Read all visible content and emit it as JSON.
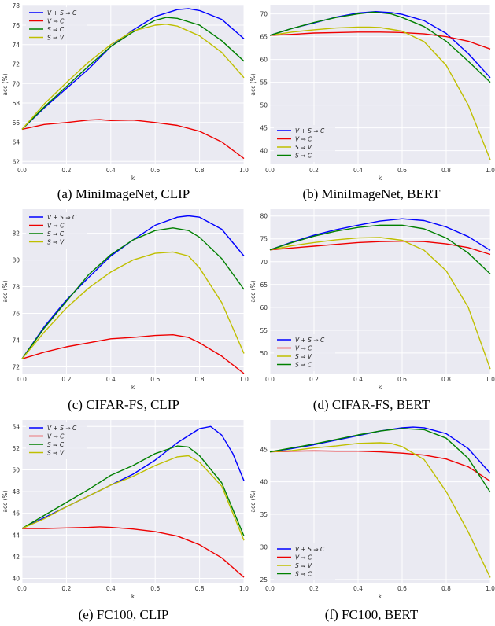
{
  "chart_data": [
    {
      "type": "line",
      "caption": "(a) MiniImageNet, CLIP",
      "xlabel": "k",
      "ylabel": "acc (%)",
      "xlim": [
        0,
        1
      ],
      "ylim": [
        61.7,
        78.1
      ],
      "xticks": [
        "0.0",
        "0.2",
        "0.4",
        "0.6",
        "0.8",
        "1.0"
      ],
      "yticks": [
        "62",
        "64",
        "66",
        "68",
        "70",
        "72",
        "74",
        "76",
        "78"
      ],
      "ytick_vals": [
        62,
        64,
        66,
        68,
        70,
        72,
        74,
        76,
        78
      ],
      "legend": "top-left",
      "grid": true,
      "series": [
        {
          "name": "V + S ⇒ C",
          "color": "#0000ff",
          "x": [
            0,
            0.1,
            0.2,
            0.3,
            0.4,
            0.5,
            0.6,
            0.7,
            0.75,
            0.8,
            0.9,
            1.0
          ],
          "y": [
            65.3,
            67.5,
            69.5,
            71.5,
            73.8,
            75.5,
            76.9,
            77.6,
            77.7,
            77.5,
            76.6,
            74.6
          ]
        },
        {
          "name": "V ⇒ C",
          "color": "#ee0000",
          "x": [
            0,
            0.1,
            0.2,
            0.3,
            0.35,
            0.4,
            0.5,
            0.6,
            0.7,
            0.8,
            0.9,
            1.0
          ],
          "y": [
            65.3,
            65.8,
            66.0,
            66.25,
            66.3,
            66.2,
            66.25,
            66.0,
            65.7,
            65.1,
            64.0,
            62.3
          ]
        },
        {
          "name": "S ⇒ C",
          "color": "#008000",
          "x": [
            0,
            0.1,
            0.2,
            0.3,
            0.4,
            0.5,
            0.6,
            0.65,
            0.7,
            0.8,
            0.9,
            1.0
          ],
          "y": [
            65.3,
            67.6,
            69.7,
            71.8,
            73.8,
            75.3,
            76.5,
            76.8,
            76.7,
            76.0,
            74.4,
            72.3
          ]
        },
        {
          "name": "S ⇒ V",
          "color": "#bfbf00",
          "x": [
            0,
            0.1,
            0.2,
            0.3,
            0.4,
            0.5,
            0.6,
            0.65,
            0.7,
            0.8,
            0.9,
            1.0
          ],
          "y": [
            65.3,
            67.9,
            70.1,
            72.2,
            74.0,
            75.4,
            76.0,
            76.1,
            75.9,
            74.9,
            73.2,
            70.6
          ]
        }
      ]
    },
    {
      "type": "line",
      "caption": "(b) MiniImageNet, BERT",
      "xlabel": "k",
      "ylabel": "acc (%)",
      "xlim": [
        0,
        1
      ],
      "ylim": [
        37,
        72
      ],
      "xticks": [
        "0.0",
        "0.2",
        "0.4",
        "0.6",
        "0.8",
        "1.0"
      ],
      "yticks": [
        "40",
        "45",
        "50",
        "55",
        "60",
        "65",
        "70"
      ],
      "ytick_vals": [
        40,
        45,
        50,
        55,
        60,
        65,
        70
      ],
      "legend": "bottom-left",
      "grid": true,
      "series": [
        {
          "name": "V + S ⇒ C",
          "color": "#0000ff",
          "x": [
            0,
            0.1,
            0.2,
            0.3,
            0.4,
            0.48,
            0.55,
            0.6,
            0.7,
            0.8,
            0.9,
            1.0
          ],
          "y": [
            65.3,
            66.8,
            68.0,
            69.3,
            70.2,
            70.5,
            70.3,
            69.9,
            68.5,
            65.7,
            61.3,
            56.0
          ]
        },
        {
          "name": "V ⇒ C",
          "color": "#ee0000",
          "x": [
            0,
            0.1,
            0.2,
            0.3,
            0.4,
            0.5,
            0.6,
            0.7,
            0.8,
            0.9,
            1.0
          ],
          "y": [
            65.3,
            65.5,
            65.8,
            65.9,
            66.0,
            66.0,
            65.9,
            65.6,
            65.0,
            64.0,
            62.3
          ]
        },
        {
          "name": "S ⇒ V",
          "color": "#bfbf00",
          "x": [
            0,
            0.1,
            0.2,
            0.3,
            0.4,
            0.45,
            0.5,
            0.6,
            0.7,
            0.8,
            0.9,
            1.0
          ],
          "y": [
            65.3,
            66.0,
            66.5,
            66.9,
            67.1,
            67.1,
            67.0,
            66.2,
            63.9,
            58.7,
            50.0,
            38.0
          ]
        },
        {
          "name": "S ⇒ C",
          "color": "#008000",
          "x": [
            0,
            0.1,
            0.2,
            0.3,
            0.4,
            0.47,
            0.55,
            0.6,
            0.7,
            0.8,
            0.9,
            1.0
          ],
          "y": [
            65.3,
            66.8,
            68.1,
            69.2,
            70.0,
            70.4,
            70.0,
            69.2,
            67.2,
            64.0,
            59.6,
            55.0
          ]
        }
      ]
    },
    {
      "type": "line",
      "caption": "(c) CIFAR-FS, CLIP",
      "xlabel": "k",
      "ylabel": "acc (%)",
      "xlim": [
        0,
        1
      ],
      "ylim": [
        71.5,
        83.8
      ],
      "xticks": [
        "0.0",
        "0.2",
        "0.4",
        "0.6",
        "0.8",
        "1.0"
      ],
      "yticks": [
        "72",
        "74",
        "76",
        "78",
        "80",
        "82"
      ],
      "ytick_vals": [
        72,
        74,
        76,
        78,
        80,
        82
      ],
      "legend": "top-left",
      "grid": true,
      "series": [
        {
          "name": "V + S ⇒ C",
          "color": "#0000ff",
          "x": [
            0,
            0.1,
            0.2,
            0.3,
            0.4,
            0.5,
            0.6,
            0.7,
            0.75,
            0.8,
            0.9,
            1.0
          ],
          "y": [
            72.6,
            75.0,
            77.0,
            78.7,
            80.3,
            81.5,
            82.6,
            83.2,
            83.3,
            83.2,
            82.3,
            80.3
          ]
        },
        {
          "name": "V ⇒ C",
          "color": "#ee0000",
          "x": [
            0,
            0.1,
            0.2,
            0.3,
            0.4,
            0.5,
            0.6,
            0.68,
            0.75,
            0.8,
            0.9,
            1.0
          ],
          "y": [
            72.6,
            73.1,
            73.5,
            73.8,
            74.1,
            74.2,
            74.35,
            74.4,
            74.2,
            73.8,
            72.8,
            71.5
          ]
        },
        {
          "name": "S ⇒ C",
          "color": "#008000",
          "x": [
            0,
            0.1,
            0.2,
            0.3,
            0.4,
            0.5,
            0.6,
            0.68,
            0.75,
            0.8,
            0.9,
            1.0
          ],
          "y": [
            72.6,
            74.9,
            76.9,
            78.9,
            80.4,
            81.5,
            82.2,
            82.4,
            82.2,
            81.7,
            80.1,
            77.8
          ]
        },
        {
          "name": "S ⇒ V",
          "color": "#bfbf00",
          "x": [
            0,
            0.1,
            0.2,
            0.3,
            0.4,
            0.5,
            0.6,
            0.68,
            0.75,
            0.8,
            0.9,
            1.0
          ],
          "y": [
            72.6,
            74.6,
            76.4,
            77.9,
            79.1,
            80.0,
            80.5,
            80.6,
            80.3,
            79.4,
            76.8,
            73.0
          ]
        }
      ]
    },
    {
      "type": "line",
      "caption": "(d) CIFAR-FS, BERT",
      "xlabel": "k",
      "ylabel": "acc (%)",
      "xlim": [
        0,
        1
      ],
      "ylim": [
        45.5,
        81.5
      ],
      "xticks": [
        "0.0",
        "0.2",
        "0.4",
        "0.6",
        "0.8",
        "1.0"
      ],
      "yticks": [
        "50",
        "55",
        "60",
        "65",
        "70",
        "75",
        "80"
      ],
      "ytick_vals": [
        50,
        55,
        60,
        65,
        70,
        75,
        80
      ],
      "legend": "bottom-left",
      "grid": true,
      "series": [
        {
          "name": "V + S ⇒ C",
          "color": "#0000ff",
          "x": [
            0,
            0.1,
            0.2,
            0.3,
            0.4,
            0.5,
            0.6,
            0.7,
            0.8,
            0.9,
            1.0
          ],
          "y": [
            72.6,
            74.3,
            75.8,
            77.0,
            78.0,
            78.9,
            79.4,
            79.0,
            77.6,
            75.5,
            72.5
          ]
        },
        {
          "name": "V ⇒ C",
          "color": "#ee0000",
          "x": [
            0,
            0.1,
            0.2,
            0.3,
            0.4,
            0.5,
            0.6,
            0.7,
            0.8,
            0.9,
            1.0
          ],
          "y": [
            72.6,
            73.0,
            73.4,
            73.8,
            74.2,
            74.4,
            74.5,
            74.4,
            73.9,
            73.1,
            71.6
          ]
        },
        {
          "name": "S ⇒ V",
          "color": "#bfbf00",
          "x": [
            0,
            0.1,
            0.2,
            0.3,
            0.4,
            0.5,
            0.6,
            0.7,
            0.8,
            0.9,
            1.0
          ],
          "y": [
            72.6,
            73.5,
            74.2,
            74.8,
            75.2,
            75.3,
            74.7,
            72.5,
            68.0,
            60.0,
            46.5
          ]
        },
        {
          "name": "S ⇒ C",
          "color": "#008000",
          "x": [
            0,
            0.1,
            0.2,
            0.3,
            0.4,
            0.5,
            0.6,
            0.7,
            0.8,
            0.9,
            1.0
          ],
          "y": [
            72.6,
            74.2,
            75.6,
            76.7,
            77.5,
            78.0,
            78.0,
            77.2,
            75.2,
            71.9,
            67.3
          ]
        }
      ]
    },
    {
      "type": "line",
      "caption": "(e) FC100, CLIP",
      "xlabel": "k",
      "ylabel": "acc (%)",
      "xlim": [
        0,
        1
      ],
      "ylim": [
        39.6,
        54.6
      ],
      "xticks": [
        "0.0",
        "0.2",
        "0.4",
        "0.6",
        "0.8",
        "1.0"
      ],
      "yticks": [
        "40",
        "42",
        "44",
        "46",
        "48",
        "50",
        "52",
        "54"
      ],
      "ytick_vals": [
        40,
        42,
        44,
        46,
        48,
        50,
        52,
        54
      ],
      "legend": "top-left",
      "grid": true,
      "series": [
        {
          "name": "V + S ⇒ C",
          "color": "#0000ff",
          "x": [
            0,
            0.1,
            0.2,
            0.3,
            0.4,
            0.5,
            0.6,
            0.7,
            0.8,
            0.85,
            0.9,
            0.95,
            1.0
          ],
          "y": [
            44.6,
            45.6,
            46.6,
            47.6,
            48.6,
            49.6,
            50.9,
            52.5,
            53.8,
            54.0,
            53.2,
            51.5,
            49.0
          ]
        },
        {
          "name": "V ⇒ C",
          "color": "#ee0000",
          "x": [
            0,
            0.1,
            0.2,
            0.3,
            0.35,
            0.4,
            0.5,
            0.6,
            0.7,
            0.8,
            0.9,
            1.0
          ],
          "y": [
            44.6,
            44.6,
            44.65,
            44.7,
            44.75,
            44.7,
            44.55,
            44.3,
            43.9,
            43.1,
            41.9,
            40.1
          ]
        },
        {
          "name": "S ⇒ C",
          "color": "#008000",
          "x": [
            0,
            0.1,
            0.2,
            0.3,
            0.4,
            0.5,
            0.6,
            0.7,
            0.75,
            0.8,
            0.9,
            1.0
          ],
          "y": [
            44.6,
            45.8,
            47.0,
            48.2,
            49.5,
            50.4,
            51.5,
            52.2,
            52.1,
            51.3,
            48.8,
            43.9
          ]
        },
        {
          "name": "S ⇒ V",
          "color": "#bfbf00",
          "x": [
            0,
            0.1,
            0.2,
            0.3,
            0.4,
            0.5,
            0.6,
            0.7,
            0.75,
            0.8,
            0.9,
            1.0
          ],
          "y": [
            44.6,
            45.5,
            46.6,
            47.6,
            48.6,
            49.4,
            50.4,
            51.2,
            51.3,
            50.7,
            48.5,
            43.5
          ]
        }
      ]
    },
    {
      "type": "line",
      "caption": "(f) FC100, BERT",
      "xlabel": "k",
      "ylabel": "acc (%)",
      "xlim": [
        0,
        1
      ],
      "ylim": [
        24.5,
        49.5
      ],
      "xticks": [
        "0.0",
        "0.2",
        "0.4",
        "0.6",
        "0.8",
        "1.0"
      ],
      "yticks": [
        "25",
        "30",
        "35",
        "40",
        "45"
      ],
      "ytick_vals": [
        25,
        30,
        35,
        40,
        45
      ],
      "legend": "bottom-left",
      "grid": true,
      "series": [
        {
          "name": "V + S ⇒ C",
          "color": "#0000ff",
          "x": [
            0,
            0.1,
            0.2,
            0.3,
            0.4,
            0.5,
            0.6,
            0.65,
            0.7,
            0.8,
            0.9,
            1.0
          ],
          "y": [
            44.6,
            45.1,
            45.7,
            46.4,
            47.1,
            47.8,
            48.3,
            48.4,
            48.3,
            47.4,
            45.1,
            41.3
          ]
        },
        {
          "name": "V ⇒ C",
          "color": "#ee0000",
          "x": [
            0,
            0.1,
            0.2,
            0.3,
            0.4,
            0.5,
            0.6,
            0.7,
            0.8,
            0.9,
            1.0
          ],
          "y": [
            44.6,
            44.7,
            44.75,
            44.7,
            44.7,
            44.6,
            44.4,
            44.1,
            43.5,
            42.3,
            40.1
          ]
        },
        {
          "name": "S ⇒ V",
          "color": "#bfbf00",
          "x": [
            0,
            0.1,
            0.2,
            0.3,
            0.4,
            0.5,
            0.55,
            0.6,
            0.7,
            0.8,
            0.9,
            1.0
          ],
          "y": [
            44.6,
            44.8,
            45.2,
            45.5,
            45.9,
            46.0,
            45.9,
            45.4,
            43.4,
            38.5,
            32.3,
            25.3
          ]
        },
        {
          "name": "S ⇒ C",
          "color": "#008000",
          "x": [
            0,
            0.1,
            0.2,
            0.3,
            0.4,
            0.5,
            0.6,
            0.7,
            0.8,
            0.9,
            1.0
          ],
          "y": [
            44.6,
            45.2,
            45.8,
            46.5,
            47.2,
            47.8,
            48.2,
            48.0,
            46.7,
            43.6,
            38.4
          ]
        }
      ]
    }
  ]
}
